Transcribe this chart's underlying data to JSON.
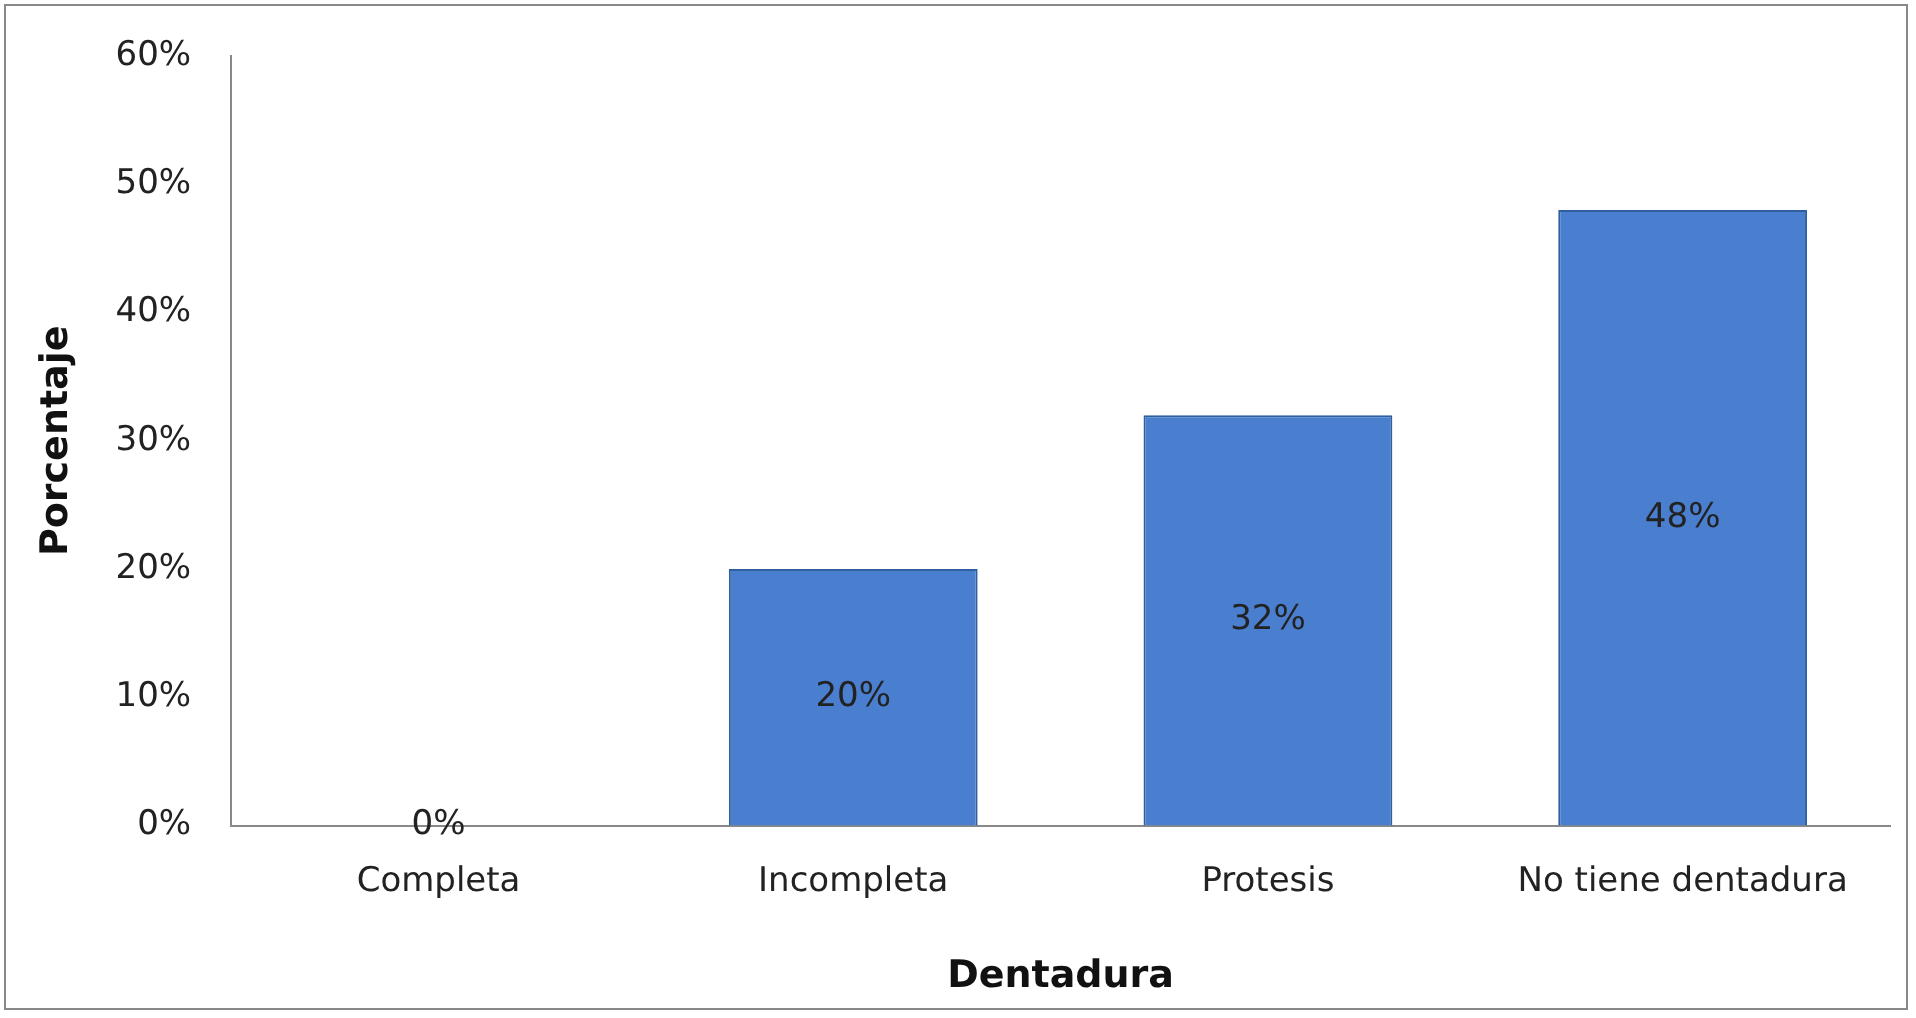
{
  "chart_data": {
    "type": "bar",
    "xlabel": "Dentadura",
    "ylabel": "Porcentaje",
    "categories": [
      "Completa",
      "Incompleta",
      "Protesis",
      "No tiene dentadura"
    ],
    "values": [
      0,
      20,
      32,
      48
    ],
    "color": "#4a7fcf",
    "value_labels": [
      "0%",
      "20%",
      "32%",
      "48%"
    ],
    "ylim": [
      0,
      60
    ],
    "yticks": [
      {
        "value": 0,
        "label": "0%"
      },
      {
        "value": 10,
        "label": "10%"
      },
      {
        "value": 20,
        "label": "20%"
      },
      {
        "value": 30,
        "label": "30%"
      },
      {
        "value": 40,
        "label": "40%"
      },
      {
        "value": 50,
        "label": "50%"
      },
      {
        "value": 60,
        "label": "60%"
      }
    ],
    "grid": false,
    "legend": false
  }
}
